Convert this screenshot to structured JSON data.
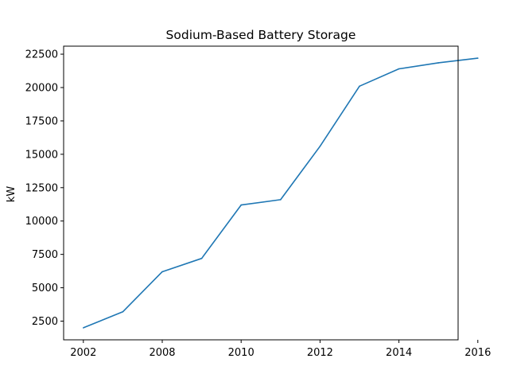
{
  "chart_data": {
    "type": "line",
    "title": "Sodium-Based Battery Storage",
    "xlabel": "",
    "ylabel": "kW",
    "x_ticks": [
      "2002",
      "2008",
      "2010",
      "2012",
      "2014",
      "2016"
    ],
    "y_ticks": [
      "2500",
      "5000",
      "7500",
      "10000",
      "12500",
      "15000",
      "17500",
      "20000",
      "22500"
    ],
    "xlim": [
      1.5,
      11.5
    ],
    "ylim": [
      1100,
      23100
    ],
    "grid": false,
    "legend": "none",
    "series": [
      {
        "color": "#1f77b4",
        "points": [
          {
            "x": 2002,
            "y": 2000
          },
          {
            "x": 2003,
            "y": 3200
          },
          {
            "x": 2008,
            "y": 6200
          },
          {
            "x": 2009,
            "y": 7200
          },
          {
            "x": 2010,
            "y": 11200
          },
          {
            "x": 2011,
            "y": 11600
          },
          {
            "x": 2012,
            "y": 15600
          },
          {
            "x": 2013,
            "y": 20100
          },
          {
            "x": 2014,
            "y": 21400
          },
          {
            "x": 2015,
            "y": 21850
          },
          {
            "x": 2016,
            "y": 22200
          }
        ]
      }
    ]
  }
}
